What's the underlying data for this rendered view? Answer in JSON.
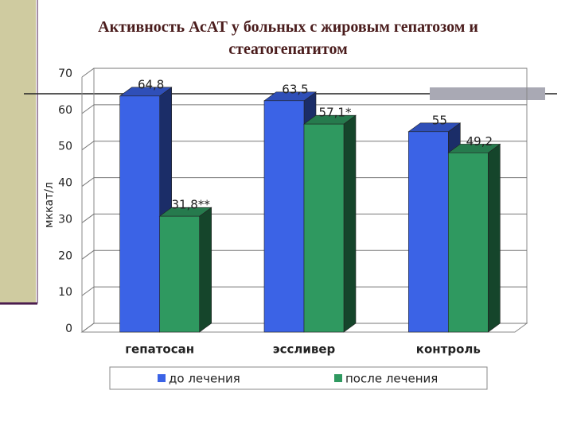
{
  "chart_data": {
    "type": "bar3d",
    "title": "Активность АсАТ у больных с жировым гепатозом и стеатогепатитом",
    "ylabel": "мккат/л",
    "categories": [
      "гепатосан",
      "эссливер",
      "контроль"
    ],
    "series": [
      {
        "name": "до лечения",
        "color": "#3b63e6",
        "values": [
          64.8,
          63.5,
          55
        ],
        "value_labels": [
          "64,8",
          "63,5",
          "55"
        ]
      },
      {
        "name": "после лечения",
        "color": "#2f9960",
        "values": [
          31.8,
          57.1,
          49.2
        ],
        "value_labels": [
          "31,8**",
          "57,1*",
          "49,2"
        ]
      }
    ],
    "ylim": [
      0,
      70
    ],
    "yticks": [
      0,
      10,
      20,
      30,
      40,
      50,
      60,
      70
    ],
    "grid": true,
    "legend": "bottom"
  }
}
